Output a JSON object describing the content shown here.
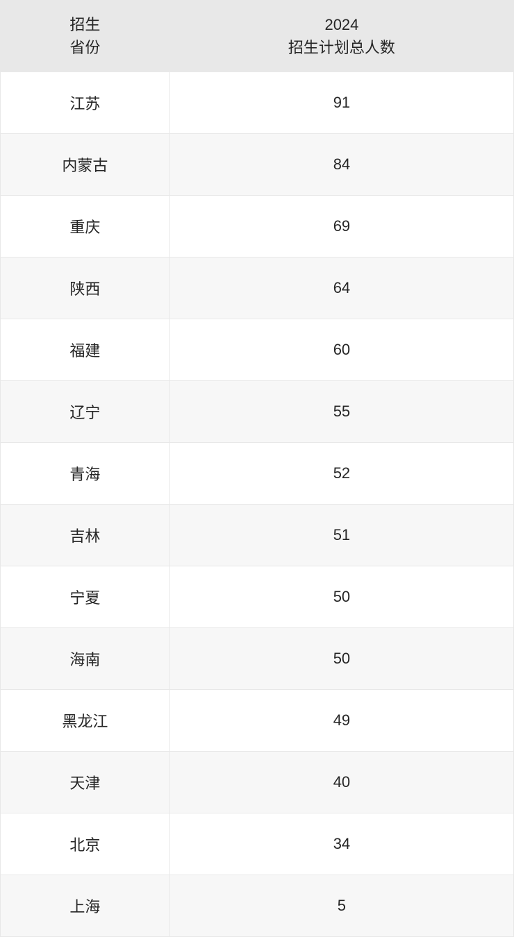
{
  "table": {
    "columns": [
      {
        "label_line1": "招生",
        "label_line2": "省份",
        "class": "col-province"
      },
      {
        "label_line1": "2024",
        "label_line2": "招生计划总人数",
        "class": "col-total"
      }
    ],
    "rows": [
      {
        "province": "江苏",
        "total": "91"
      },
      {
        "province": "内蒙古",
        "total": "84"
      },
      {
        "province": "重庆",
        "total": "69"
      },
      {
        "province": "陕西",
        "total": "64"
      },
      {
        "province": "福建",
        "total": "60"
      },
      {
        "province": "辽宁",
        "total": "55"
      },
      {
        "province": "青海",
        "total": "52"
      },
      {
        "province": "吉林",
        "total": "51"
      },
      {
        "province": "宁夏",
        "total": "50"
      },
      {
        "province": "海南",
        "total": "50"
      },
      {
        "province": "黑龙江",
        "total": "49"
      },
      {
        "province": "天津",
        "total": "40"
      },
      {
        "province": "北京",
        "total": "34"
      },
      {
        "province": "上海",
        "total": "5"
      }
    ],
    "styles": {
      "header_bg": "#e8e8e8",
      "border_color": "#e8e8e8",
      "row_even_bg": "#f7f7f7",
      "row_odd_bg": "#ffffff",
      "text_color": "#262626",
      "header_fontsize": 22,
      "cell_fontsize": 22
    }
  }
}
